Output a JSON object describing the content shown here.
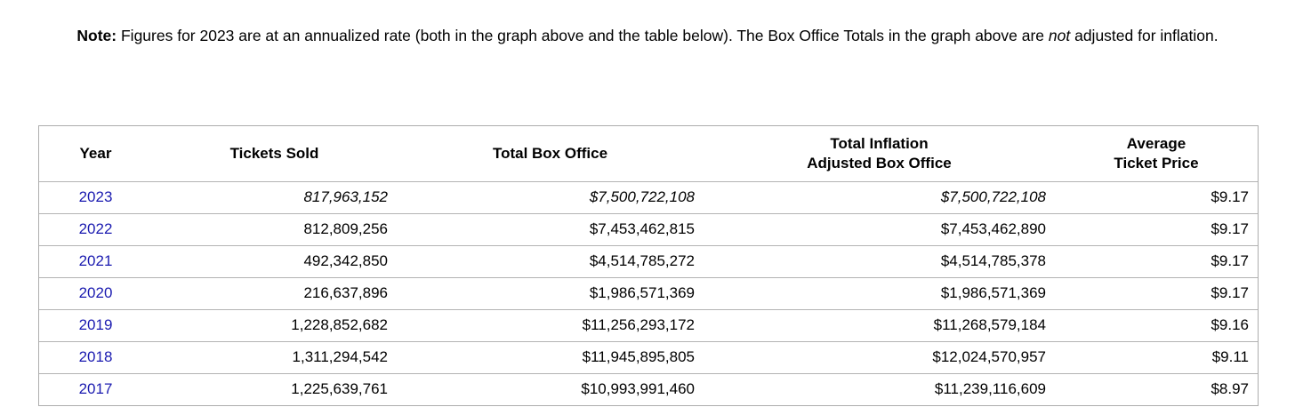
{
  "note": {
    "label": "Note:",
    "text_main": " Figures for 2023 are at an annualized rate (both in the graph above and the table below). The Box Office Totals in the graph above are ",
    "italic_word": "not",
    "text_end": " adjusted for inflation."
  },
  "table": {
    "headers": {
      "year": "Year",
      "tickets_sold": "Tickets Sold",
      "total_box_office": "Total Box Office",
      "inflation_line1": "Total Inflation",
      "inflation_line2": "Adjusted Box Office",
      "avg_price_line1": "Average",
      "avg_price_line2": "Ticket Price"
    },
    "rows": [
      {
        "year": "2023",
        "tickets_sold": "817,963,152",
        "total_box_office": "$7,500,722,108",
        "inflation_adjusted_box_office": "$7,500,722,108",
        "average_ticket_price": "$9.17",
        "estimated": true
      },
      {
        "year": "2022",
        "tickets_sold": "812,809,256",
        "total_box_office": "$7,453,462,815",
        "inflation_adjusted_box_office": "$7,453,462,890",
        "average_ticket_price": "$9.17",
        "estimated": false
      },
      {
        "year": "2021",
        "tickets_sold": "492,342,850",
        "total_box_office": "$4,514,785,272",
        "inflation_adjusted_box_office": "$4,514,785,378",
        "average_ticket_price": "$9.17",
        "estimated": false
      },
      {
        "year": "2020",
        "tickets_sold": "216,637,896",
        "total_box_office": "$1,986,571,369",
        "inflation_adjusted_box_office": "$1,986,571,369",
        "average_ticket_price": "$9.17",
        "estimated": false
      },
      {
        "year": "2019",
        "tickets_sold": "1,228,852,682",
        "total_box_office": "$11,256,293,172",
        "inflation_adjusted_box_office": "$11,268,579,184",
        "average_ticket_price": "$9.16",
        "estimated": false
      },
      {
        "year": "2018",
        "tickets_sold": "1,311,294,542",
        "total_box_office": "$11,945,895,805",
        "inflation_adjusted_box_office": "$12,024,570,957",
        "average_ticket_price": "$9.11",
        "estimated": false
      },
      {
        "year": "2017",
        "tickets_sold": "1,225,639,761",
        "total_box_office": "$10,993,991,460",
        "inflation_adjusted_box_office": "$11,239,116,609",
        "average_ticket_price": "$8.97",
        "estimated": false
      }
    ]
  },
  "colors": {
    "link_blue": "#1b1bb0",
    "border_gray": "#adadad"
  }
}
